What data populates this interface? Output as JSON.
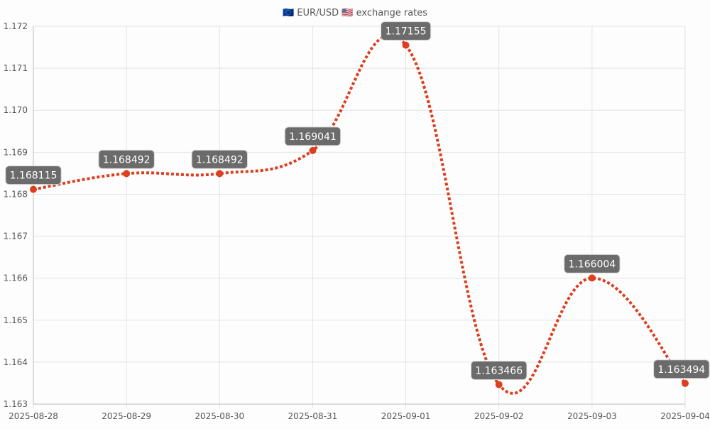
{
  "title": "🇪🇺 EUR/USD 🇺🇸 exchange rates",
  "colors": {
    "line": "#dc3e1f",
    "point": "#dc3e1f",
    "label_bg": "#6b6b6b",
    "label_text": "#ffffff"
  },
  "chart_data": {
    "type": "line",
    "title": "🇪🇺 EUR/USD 🇺🇸 exchange rates",
    "xlabel": "",
    "ylabel": "",
    "categories": [
      "2025-08-28",
      "2025-08-29",
      "2025-08-30",
      "2025-08-31",
      "2025-09-01",
      "2025-09-02",
      "2025-09-03",
      "2025-09-04"
    ],
    "series": [
      {
        "values": [
          1.168115,
          1.168492,
          1.168492,
          1.169041,
          1.17155,
          1.163466,
          1.166004,
          1.163494
        ],
        "value_labels": [
          "1.168115",
          "1.168492",
          "1.168492",
          "1.169041",
          "1.17155",
          "1.163466",
          "1.166004",
          "1.163494"
        ]
      }
    ],
    "ylim": [
      1.163,
      1.172
    ],
    "yticks": [
      "1.163",
      "1.164",
      "1.165",
      "1.166",
      "1.167",
      "1.168",
      "1.169",
      "1.170",
      "1.171",
      "1.172"
    ],
    "line_style": "dotted",
    "smooth": true,
    "grid": true,
    "data_labels": true
  }
}
